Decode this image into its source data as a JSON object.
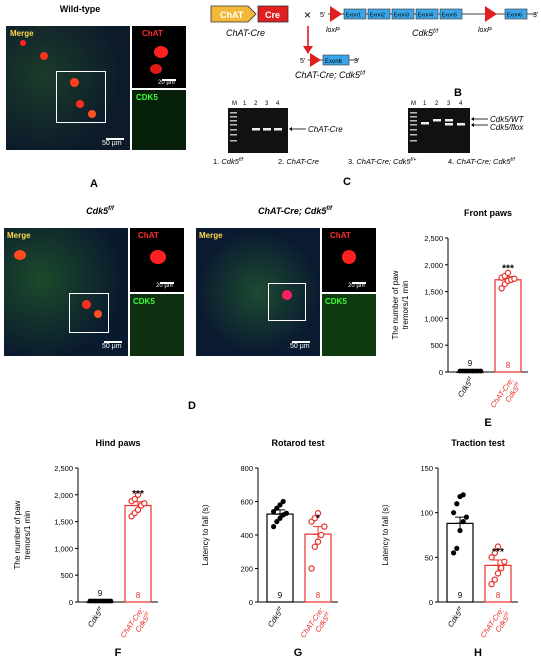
{
  "panelA": {
    "letter": "A",
    "title": "Wild-type",
    "merge": "Merge",
    "chat": "ChAT",
    "cdk5": "CDK5",
    "scale_main": "50 µm",
    "scale_inset": "20 µm"
  },
  "panelB": {
    "letter": "B",
    "chat_box": "ChAT",
    "cre_box": "Cre",
    "cross": "×",
    "chatcre_label": "ChAT-Cre",
    "five": "5'",
    "three": "3'",
    "loxp1": "loxP",
    "loxp2": "loxP",
    "exons": [
      "Exon1",
      "Exon2",
      "Exon3",
      "Exon4",
      "Exon5",
      "Exon6"
    ],
    "cdk5ff_label": "Cdk5",
    "cdk5ff_sup": "f/f",
    "result_exon": "Exon6",
    "result_label": "ChAT-Cre; Cdk5",
    "result_sup": "f/f"
  },
  "panelC": {
    "letter": "C",
    "gel1_lanes": [
      "M",
      "1",
      "2",
      "3",
      "4"
    ],
    "gel2_lanes": [
      "M",
      "1",
      "2",
      "3",
      "4"
    ],
    "gel1_band": "ChAT-Cre",
    "gel2_band1": "Cdk5/WT",
    "gel2_band2": "Cdk5/flox",
    "legend": [
      {
        "num": "1.",
        "name": "Cdk5",
        "sup": "f/f"
      },
      {
        "num": "2.",
        "name": "ChAT-Cre",
        "sup": ""
      },
      {
        "num": "3.",
        "name": "ChAT-Cre; Cdk5",
        "sup": "f/+"
      },
      {
        "num": "4.",
        "name": "ChAT-Cre; Cdk5",
        "sup": "f/f"
      }
    ]
  },
  "panelD": {
    "letter": "D",
    "title_left": "Cdk5",
    "title_left_sup": "f/f",
    "title_right": "ChAT-Cre; Cdk5",
    "title_right_sup": "f/f",
    "merge": "Merge",
    "chat": "ChAT",
    "cdk5": "CDK5",
    "scale_main": "50 µm",
    "scale_inset": "20 µm"
  },
  "chart_data": [
    {
      "type": "bar",
      "letter": "E",
      "title": "Front paws",
      "ylabel": "The number of paw tremors/1 min",
      "ylim": [
        0,
        2500
      ],
      "yticks": [
        0,
        500,
        1000,
        1500,
        2000,
        2500
      ],
      "ytick_labels": [
        "0",
        "500",
        "1,000",
        "1,500",
        "2,000",
        "2,500"
      ],
      "categories": [
        "Cdk5f/f",
        "ChAT-Cre; Cdk5f/f"
      ],
      "cat_lines": [
        [
          "Cdk5",
          "f/f"
        ],
        [
          "ChAT-Cre;",
          ""
        ],
        [
          "Cdk5",
          "f/f"
        ]
      ],
      "values": [
        0,
        1720
      ],
      "errors": [
        0,
        60
      ],
      "n": [
        "9",
        "8"
      ],
      "significance": "***",
      "points": [
        [
          0,
          0,
          0,
          0,
          0,
          0,
          0,
          0,
          0
        ],
        [
          1560,
          1640,
          1700,
          1720,
          1740,
          1760,
          1790,
          1850
        ]
      ]
    },
    {
      "type": "bar",
      "letter": "F",
      "title": "Hind paws",
      "ylabel": "The number of paw tremors/1 min",
      "ylim": [
        0,
        2500
      ],
      "yticks": [
        0,
        500,
        1000,
        1500,
        2000,
        2500
      ],
      "ytick_labels": [
        "0",
        "500",
        "1,000",
        "1,500",
        "2,000",
        "2,500"
      ],
      "categories": [
        "Cdk5f/f",
        "ChAT-Cre; Cdk5f/f"
      ],
      "values": [
        0,
        1800
      ],
      "errors": [
        0,
        70
      ],
      "n": [
        "9",
        "8"
      ],
      "significance": "***",
      "points": [
        [
          0,
          0,
          0,
          0,
          0,
          0,
          0,
          0,
          0
        ],
        [
          1600,
          1660,
          1720,
          1800,
          1840,
          1880,
          1920,
          2000
        ]
      ]
    },
    {
      "type": "bar",
      "letter": "G",
      "title": "Rotarod test",
      "ylabel": "Latency to fall (s)",
      "ylim": [
        0,
        800
      ],
      "yticks": [
        0,
        200,
        400,
        600,
        800
      ],
      "ytick_labels": [
        "0",
        "200",
        "400",
        "600",
        "800"
      ],
      "categories": [
        "Cdk5f/f",
        "ChAT-Cre; Cdk5f/f"
      ],
      "values": [
        525,
        405
      ],
      "errors": [
        25,
        45
      ],
      "n": [
        "9",
        "8"
      ],
      "significance": "*",
      "points": [
        [
          450,
          480,
          500,
          520,
          530,
          540,
          560,
          580,
          600
        ],
        [
          200,
          330,
          360,
          400,
          450,
          480,
          500,
          530
        ]
      ]
    },
    {
      "type": "bar",
      "letter": "H",
      "title": "Traction test",
      "ylabel": "Latency to fall (s)",
      "ylim": [
        0,
        150
      ],
      "yticks": [
        0,
        50,
        100,
        150
      ],
      "ytick_labels": [
        "0",
        "50",
        "100",
        "150"
      ],
      "categories": [
        "Cdk5f/f",
        "ChAT-Cre; Cdk5f/f"
      ],
      "values": [
        88,
        41
      ],
      "errors": [
        7,
        6
      ],
      "n": [
        "9",
        "8"
      ],
      "significance": "***",
      "points": [
        [
          55,
          60,
          80,
          90,
          95,
          100,
          110,
          118,
          120
        ],
        [
          20,
          25,
          32,
          38,
          45,
          50,
          55,
          62
        ]
      ]
    }
  ]
}
